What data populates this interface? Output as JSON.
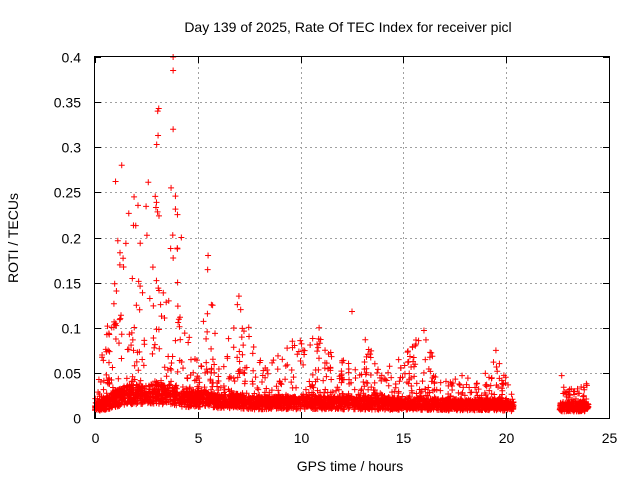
{
  "chart_data": {
    "type": "scatter",
    "title": "Day 139 of 2025, Rate Of TEC Index for receiver picl",
    "xlabel": "GPS time / hours",
    "ylabel": "ROTI / TECUs",
    "xlim": [
      0,
      25
    ],
    "ylim": [
      0,
      0.4
    ],
    "xticks": [
      0,
      5,
      10,
      15,
      20,
      25
    ],
    "yticks": [
      0,
      0.05,
      0.1,
      0.15,
      0.2,
      0.25,
      0.3,
      0.35,
      0.4
    ],
    "xtick_labels": [
      "0",
      "5",
      "10",
      "15",
      "20",
      "25"
    ],
    "ytick_labels": [
      "0",
      "0.05",
      "0.1",
      "0.15",
      "0.2",
      "0.25",
      "0.3",
      "0.35",
      "0.4"
    ],
    "grid": true,
    "marker": "+",
    "color": "#ff0000",
    "series": [
      {
        "name": "ROTI",
        "segments": [
          {
            "x_start": 0.0,
            "x_end": 20.4,
            "note": "continuous coverage"
          },
          {
            "x_start": 22.6,
            "x_end": 24.0,
            "note": "continuous coverage"
          }
        ],
        "envelope": [
          {
            "x": 0.0,
            "base": 0.012,
            "peak": 0.04
          },
          {
            "x": 0.5,
            "base": 0.015,
            "peak": 0.09
          },
          {
            "x": 1.0,
            "base": 0.02,
            "peak": 0.2
          },
          {
            "x": 1.5,
            "base": 0.025,
            "peak": 0.26
          },
          {
            "x": 2.0,
            "base": 0.025,
            "peak": 0.24
          },
          {
            "x": 2.5,
            "base": 0.025,
            "peak": 0.25
          },
          {
            "x": 3.0,
            "base": 0.025,
            "peak": 0.34
          },
          {
            "x": 3.5,
            "base": 0.025,
            "peak": 0.27
          },
          {
            "x": 3.8,
            "base": 0.025,
            "peak": 0.4
          },
          {
            "x": 4.2,
            "base": 0.02,
            "peak": 0.12
          },
          {
            "x": 5.0,
            "base": 0.02,
            "peak": 0.07
          },
          {
            "x": 5.5,
            "base": 0.02,
            "peak": 0.18
          },
          {
            "x": 6.0,
            "base": 0.018,
            "peak": 0.06
          },
          {
            "x": 7.0,
            "base": 0.018,
            "peak": 0.135
          },
          {
            "x": 7.5,
            "base": 0.016,
            "peak": 0.1
          },
          {
            "x": 8.0,
            "base": 0.016,
            "peak": 0.065
          },
          {
            "x": 9.5,
            "base": 0.016,
            "peak": 0.08
          },
          {
            "x": 11.0,
            "base": 0.016,
            "peak": 0.1
          },
          {
            "x": 12.0,
            "base": 0.016,
            "peak": 0.065
          },
          {
            "x": 12.5,
            "base": 0.016,
            "peak": 0.118
          },
          {
            "x": 14.0,
            "base": 0.015,
            "peak": 0.05
          },
          {
            "x": 16.0,
            "base": 0.015,
            "peak": 0.097
          },
          {
            "x": 17.0,
            "base": 0.014,
            "peak": 0.045
          },
          {
            "x": 19.0,
            "base": 0.014,
            "peak": 0.05
          },
          {
            "x": 19.5,
            "base": 0.014,
            "peak": 0.075
          },
          {
            "x": 20.4,
            "base": 0.012,
            "peak": 0.02
          },
          {
            "x": 22.6,
            "base": 0.012,
            "peak": 0.048
          },
          {
            "x": 23.3,
            "base": 0.012,
            "peak": 0.03
          },
          {
            "x": 24.0,
            "base": 0.012,
            "peak": 0.04
          }
        ],
        "notable_points": [
          {
            "x": 3.8,
            "y": 0.4
          },
          {
            "x": 3.8,
            "y": 0.385
          },
          {
            "x": 3.1,
            "y": 0.343
          },
          {
            "x": 3.05,
            "y": 0.34
          },
          {
            "x": 3.8,
            "y": 0.32
          },
          {
            "x": 3.0,
            "y": 0.303
          },
          {
            "x": 1.3,
            "y": 0.28
          },
          {
            "x": 3.7,
            "y": 0.255
          },
          {
            "x": 1.0,
            "y": 0.262
          },
          {
            "x": 1.9,
            "y": 0.245
          },
          {
            "x": 5.5,
            "y": 0.18
          },
          {
            "x": 4.2,
            "y": 0.2
          },
          {
            "x": 7.0,
            "y": 0.135
          },
          {
            "x": 12.5,
            "y": 0.118
          },
          {
            "x": 10.9,
            "y": 0.1
          },
          {
            "x": 16.0,
            "y": 0.097
          },
          {
            "x": 9.6,
            "y": 0.085
          },
          {
            "x": 19.5,
            "y": 0.075
          },
          {
            "x": 22.7,
            "y": 0.047
          },
          {
            "x": 23.9,
            "y": 0.038
          }
        ]
      }
    ]
  }
}
